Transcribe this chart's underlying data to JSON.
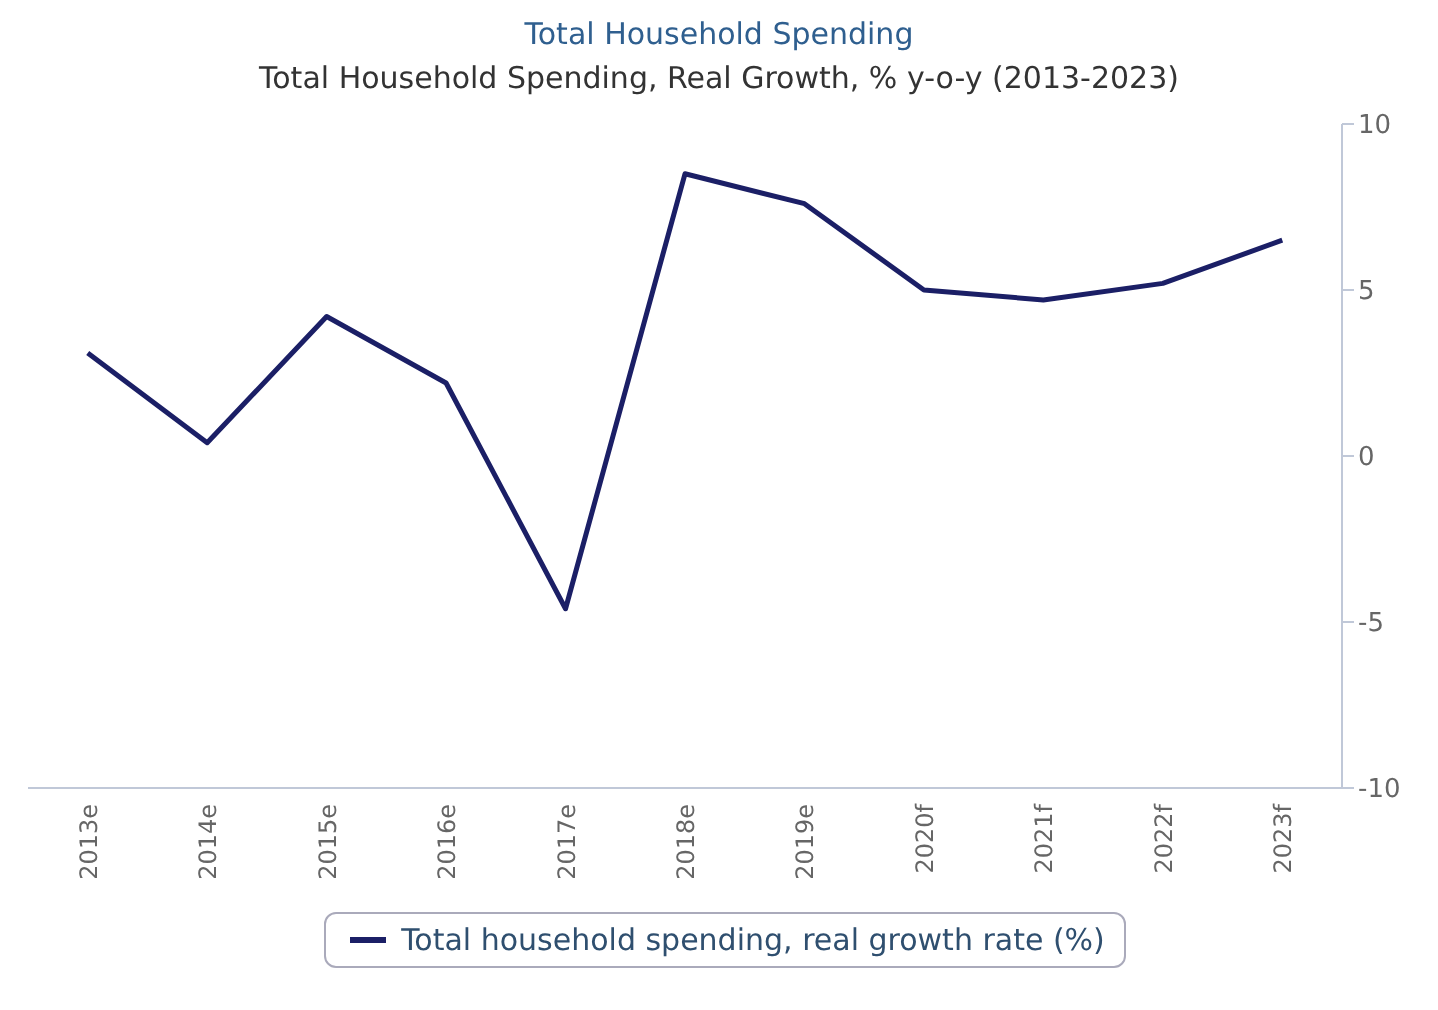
{
  "chart_data": {
    "type": "line",
    "title": "Total Household Spending",
    "subtitle": "Total Household Spending, Real Growth, % y-o-y (2013-2023)",
    "categories": [
      "2013e",
      "2014e",
      "2015e",
      "2016e",
      "2017e",
      "2018e",
      "2019e",
      "2020f",
      "2021f",
      "2022f",
      "2023f"
    ],
    "series": [
      {
        "name": "Total household spending, real growth rate (%)",
        "color": "#1b1f66",
        "values": [
          3.1,
          0.4,
          4.2,
          2.2,
          -4.6,
          8.5,
          7.6,
          5.0,
          4.7,
          5.2,
          6.5
        ]
      }
    ],
    "ylim": [
      -10,
      10
    ],
    "yticks": [
      -10,
      -5,
      0,
      5,
      10
    ],
    "grid": false,
    "legend": "bottom",
    "marker": "none",
    "line_style": "solid"
  }
}
